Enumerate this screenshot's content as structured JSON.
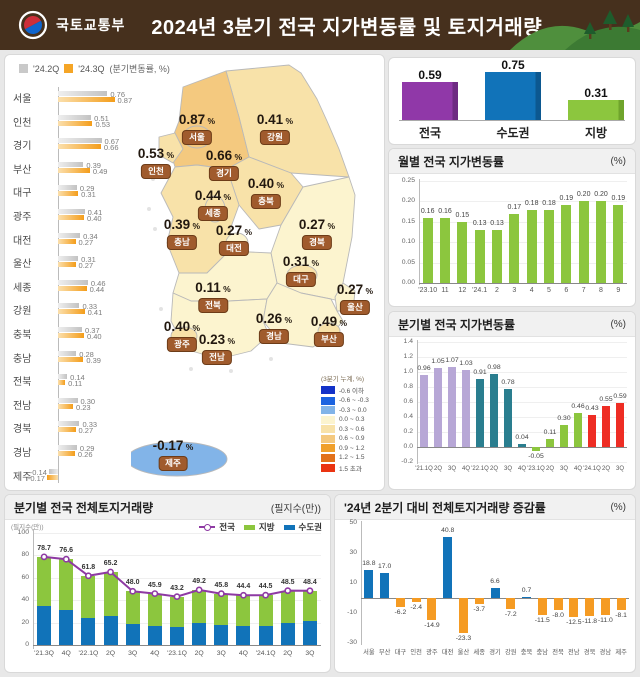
{
  "header": {
    "ministry": "국토교통부",
    "title": "2024년 3분기 전국 지가변동률 및 토지거래량"
  },
  "left_legend": {
    "q2": "'24.2Q",
    "q3": "'24.3Q",
    "note": "(분기변동률, %)"
  },
  "chart_data": [
    {
      "id": "regional_quarterly_bars",
      "type": "bar",
      "orientation": "horizontal",
      "categories": [
        "서울",
        "인천",
        "경기",
        "부산",
        "대구",
        "광주",
        "대전",
        "울산",
        "세종",
        "강원",
        "충북",
        "충남",
        "전북",
        "전남",
        "경북",
        "경남",
        "제주"
      ],
      "series": [
        {
          "name": "'24.2Q",
          "color": "#c9c9c9",
          "values": [
            0.76,
            0.51,
            0.67,
            0.39,
            0.29,
            0.41,
            0.34,
            0.31,
            0.46,
            0.33,
            0.37,
            0.28,
            0.14,
            0.3,
            0.33,
            0.29,
            -0.14
          ]
        },
        {
          "name": "'24.3Q",
          "color": "#f5a526",
          "values": [
            0.87,
            0.53,
            0.66,
            0.49,
            0.31,
            0.4,
            0.27,
            0.27,
            0.44,
            0.41,
            0.4,
            0.39,
            0.11,
            0.23,
            0.27,
            0.26,
            -0.17
          ]
        }
      ]
    },
    {
      "id": "korea_map_choropleth",
      "type": "heatmap",
      "legend_title": "(3분기 누계, %)",
      "legend_items": [
        {
          "label": "-0.6 이하",
          "color": "#1332c8"
        },
        {
          "label": "-0.6 ~ -0.3",
          "color": "#1b63e0"
        },
        {
          "label": "-0.3 ~ 0.0",
          "color": "#82b4e8"
        },
        {
          "label": "0.0 ~ 0.3",
          "color": "#fcf4cf"
        },
        {
          "label": "0.3 ~ 0.6",
          "color": "#f8e2a9"
        },
        {
          "label": "0.6 ~ 0.9",
          "color": "#f4c97f"
        },
        {
          "label": "0.9 ~ 1.2",
          "color": "#f0a02c"
        },
        {
          "label": "1.2 ~ 1.5",
          "color": "#e2711a"
        },
        {
          "label": "1.5 초과",
          "color": "#ea3311"
        }
      ],
      "regions": [
        {
          "name": "서울",
          "value": 0.87
        },
        {
          "name": "강원",
          "value": 0.41
        },
        {
          "name": "인천",
          "value": 0.53
        },
        {
          "name": "경기",
          "value": 0.66
        },
        {
          "name": "충북",
          "value": 0.4
        },
        {
          "name": "세종",
          "value": 0.44
        },
        {
          "name": "충남",
          "value": 0.39
        },
        {
          "name": "대전",
          "value": 0.27
        },
        {
          "name": "경북",
          "value": 0.27
        },
        {
          "name": "대구",
          "value": 0.31
        },
        {
          "name": "전북",
          "value": 0.11
        },
        {
          "name": "울산",
          "value": 0.27
        },
        {
          "name": "경남",
          "value": 0.26
        },
        {
          "name": "부산",
          "value": 0.49
        },
        {
          "name": "광주",
          "value": 0.4
        },
        {
          "name": "전남",
          "value": 0.23
        },
        {
          "name": "제주",
          "value": -0.17
        }
      ]
    },
    {
      "id": "summary_bars",
      "type": "bar",
      "categories": [
        "전국",
        "수도권",
        "지방"
      ],
      "values": [
        0.59,
        0.75,
        0.31
      ],
      "colors": [
        "#9038a8",
        "#1173b9",
        "#8cc63e"
      ]
    },
    {
      "id": "monthly_change",
      "type": "bar",
      "title": "월별 전국 지가변동률",
      "unit": "(%)",
      "categories": [
        "'23.10",
        "11",
        "12",
        "'24.1",
        "2",
        "3",
        "4",
        "5",
        "6",
        "7",
        "8",
        "9"
      ],
      "values": [
        0.16,
        0.16,
        0.15,
        0.13,
        0.13,
        0.17,
        0.18,
        0.18,
        0.19,
        0.2,
        0.2,
        0.19
      ],
      "color": "#8cc63e",
      "ylim": [
        0,
        0.25
      ],
      "yticks": [
        0,
        0.05,
        0.1,
        0.15,
        0.2,
        0.25
      ]
    },
    {
      "id": "quarterly_change",
      "type": "bar",
      "title": "분기별 전국 지가변동률",
      "unit": "(%)",
      "categories": [
        "'21.1Q",
        "2Q",
        "3Q",
        "4Q",
        "'22.1Q",
        "2Q",
        "3Q",
        "4Q",
        "'23.1Q",
        "2Q",
        "3Q",
        "4Q",
        "'24.1Q",
        "2Q",
        "3Q"
      ],
      "values": [
        0.96,
        1.05,
        1.07,
        1.03,
        0.91,
        0.98,
        0.78,
        0.04,
        -0.05,
        0.11,
        0.3,
        0.46,
        0.43,
        0.55,
        0.59
      ],
      "bar_colors": [
        "#b7a7d6",
        "#b7a7d6",
        "#b7a7d6",
        "#b7a7d6",
        "#2a7e8f",
        "#2a7e8f",
        "#2a7e8f",
        "#2a7e8f",
        "#8cc63e",
        "#8cc63e",
        "#8cc63e",
        "#8cc63e",
        "#ee2d24",
        "#ee2d24",
        "#ee2d24"
      ],
      "ylim": [
        -0.2,
        1.4
      ],
      "yticks": [
        -0.2,
        0,
        0.2,
        0.4,
        0.6,
        0.8,
        1.0,
        1.2,
        1.4
      ]
    },
    {
      "id": "land_transactions",
      "type": "bar",
      "subtype": "stacked-with-line",
      "title": "분기별 전국 전체토지거래량",
      "unit": "(필지수(만))",
      "axis_label": "(필지수(만))",
      "categories": [
        "'21.3Q",
        "4Q",
        "'22.1Q",
        "2Q",
        "3Q",
        "4Q",
        "'23.1Q",
        "2Q",
        "3Q",
        "4Q",
        "'24.1Q",
        "2Q",
        "3Q"
      ],
      "legend_order": [
        "전국",
        "지방",
        "수도권"
      ],
      "series": [
        {
          "name": "수도권",
          "role": "bar",
          "color": "#1173b9",
          "values": [
            35,
            31,
            24,
            26,
            19,
            17,
            16,
            20,
            18,
            17,
            17,
            20,
            21
          ]
        },
        {
          "name": "지방",
          "role": "bar",
          "color": "#8cc63e",
          "values": [
            43.7,
            45.6,
            37.8,
            39.2,
            29.0,
            28.9,
            27.2,
            29.2,
            27.8,
            27.4,
            27.5,
            28.5,
            27.4
          ]
        },
        {
          "name": "전국",
          "role": "line",
          "color": "#8e3aa3",
          "values": [
            78.7,
            76.6,
            61.8,
            65.2,
            48.0,
            45.9,
            43.2,
            49.2,
            45.8,
            44.4,
            44.5,
            48.5,
            48.4
          ]
        }
      ],
      "ylim": [
        0,
        100
      ],
      "yticks": [
        0,
        20,
        40,
        60,
        80,
        100
      ]
    },
    {
      "id": "transaction_change_rate",
      "type": "bar",
      "title": "'24년 2분기 대비 전체토지거래량 증감률",
      "unit": "(%)",
      "categories": [
        "서울",
        "부산",
        "대구",
        "인천",
        "광주",
        "대전",
        "울산",
        "세종",
        "경기",
        "강원",
        "충북",
        "충남",
        "전북",
        "전남",
        "경북",
        "경남",
        "제주"
      ],
      "values": [
        18.8,
        17.0,
        -6.2,
        -2.4,
        -14.9,
        40.8,
        -23.3,
        -3.7,
        6.6,
        -7.2,
        0.7,
        -11.5,
        -8.0,
        -12.5,
        -11.8,
        -11.0,
        -8.1
      ],
      "positive_color": "#1173b9",
      "negative_color": "#f59b23",
      "ylim": [
        -30,
        50
      ],
      "yticks": [
        50,
        30,
        10,
        -10,
        -30
      ]
    }
  ]
}
